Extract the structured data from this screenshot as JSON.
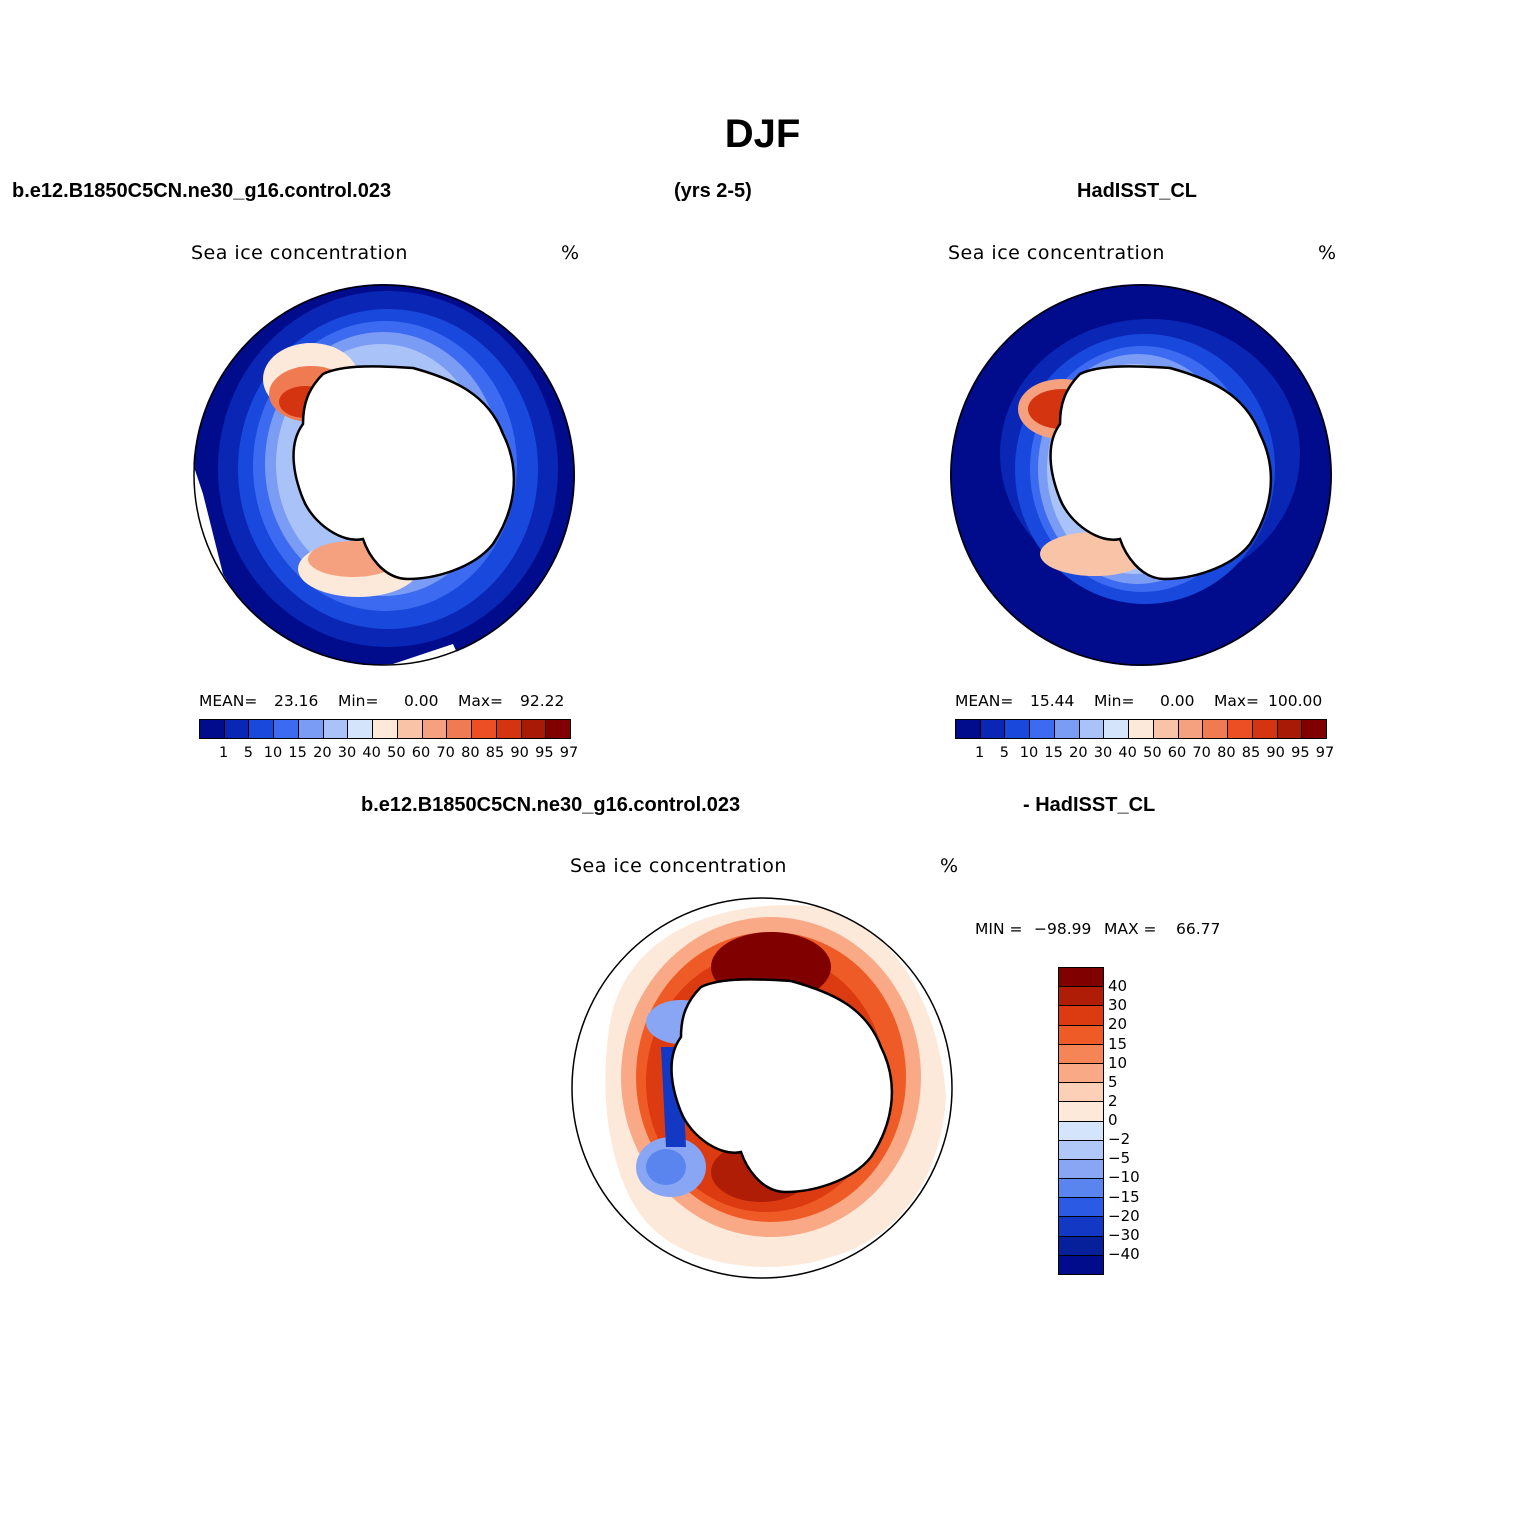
{
  "figure": {
    "title": "DJF",
    "case_name": "b.e12.B1850C5CN.ne30_g16.control.023",
    "years": "(yrs 2-5)",
    "obs_name": "HadISST_CL",
    "diff_case_name": "b.e12.B1850C5CN.ne30_g16.control.023",
    "diff_obs_name": "- HadISST_CL"
  },
  "panels": {
    "model": {
      "title": "Sea ice concentration",
      "units": "%",
      "mean_label": "MEAN=",
      "mean": "23.16",
      "min_label": "Min=",
      "min": "0.00",
      "max_label": "Max=",
      "max": "92.22"
    },
    "obs": {
      "title": "Sea ice concentration",
      "units": "%",
      "mean_label": "MEAN=",
      "mean": "15.44",
      "min_label": "Min=",
      "min": "0.00",
      "max_label": "Max=",
      "max": "100.00"
    },
    "diff": {
      "title": "Sea ice concentration",
      "units": "%",
      "min_label": "MIN =",
      "min": "−98.99",
      "max_label": "MAX =",
      "max": "66.77"
    }
  },
  "colorbar_levels": [
    "1",
    "5",
    "10",
    "15",
    "20",
    "30",
    "40",
    "50",
    "60",
    "70",
    "80",
    "85",
    "90",
    "95",
    "97"
  ],
  "colorbar_colors": [
    "#000c8c",
    "#0a26b4",
    "#1848dc",
    "#3c6af0",
    "#7b9cf4",
    "#a9c2f8",
    "#d4e4fb",
    "#fde9da",
    "#f9c3a8",
    "#f5a07e",
    "#f07a52",
    "#ec4f24",
    "#d43410",
    "#a81a06",
    "#800000"
  ],
  "diff_levels": [
    "40",
    "30",
    "20",
    "15",
    "10",
    "5",
    "2",
    "0",
    "−2",
    "−5",
    "−10",
    "−15",
    "−20",
    "−30",
    "−40"
  ],
  "diff_colors": [
    "#800000",
    "#b01d06",
    "#dc3a10",
    "#ee5b26",
    "#f58456",
    "#f9a986",
    "#fbd0b6",
    "#fde9da",
    "#d4e4fb",
    "#b0c8f8",
    "#88a6f4",
    "#5a84ee",
    "#2b5ae4",
    "#1238c4",
    "#06209c",
    "#000c8c"
  ]
}
